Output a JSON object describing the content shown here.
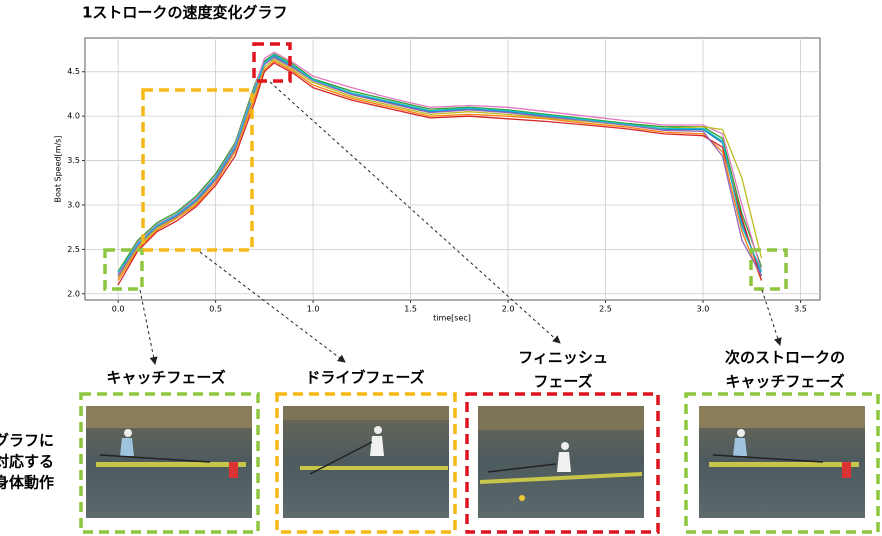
{
  "chart_data": {
    "type": "line",
    "title": "1ストロークの速度変化グラフ",
    "xlabel": "time[sec]",
    "ylabel": "Boat Speed[m/s]",
    "x": [
      0,
      0.1,
      0.2,
      0.3,
      0.4,
      0.5,
      0.6,
      0.7,
      0.75,
      0.8,
      0.9,
      1.0,
      1.2,
      1.4,
      1.6,
      1.8,
      2.0,
      2.2,
      2.4,
      2.6,
      2.8,
      3.0,
      3.1,
      3.2,
      3.3
    ],
    "series": [
      {
        "color": "#1f77b4",
        "values": [
          2.2,
          2.55,
          2.75,
          2.88,
          3.05,
          3.3,
          3.65,
          4.3,
          4.6,
          4.68,
          4.55,
          4.4,
          4.25,
          4.15,
          4.05,
          4.08,
          4.05,
          4.0,
          3.95,
          3.9,
          3.85,
          3.85,
          3.7,
          2.8,
          2.2
        ]
      },
      {
        "color": "#ff7f0e",
        "values": [
          2.15,
          2.5,
          2.72,
          2.85,
          3.0,
          3.25,
          3.6,
          4.2,
          4.52,
          4.62,
          4.5,
          4.35,
          4.2,
          4.1,
          4.0,
          4.02,
          4.0,
          3.97,
          3.92,
          3.88,
          3.82,
          3.8,
          3.6,
          2.7,
          2.15
        ]
      },
      {
        "color": "#2ca02c",
        "values": [
          2.25,
          2.6,
          2.8,
          2.92,
          3.1,
          3.35,
          3.7,
          4.35,
          4.62,
          4.7,
          4.58,
          4.42,
          4.28,
          4.18,
          4.08,
          4.1,
          4.07,
          4.02,
          3.97,
          3.92,
          3.88,
          3.88,
          3.75,
          2.9,
          2.3
        ]
      },
      {
        "color": "#d62728",
        "values": [
          2.1,
          2.48,
          2.7,
          2.82,
          2.98,
          3.22,
          3.55,
          4.15,
          4.5,
          4.6,
          4.48,
          4.32,
          4.18,
          4.08,
          3.98,
          4.0,
          3.97,
          3.94,
          3.9,
          3.86,
          3.8,
          3.78,
          3.65,
          2.85,
          2.15
        ]
      },
      {
        "color": "#e377c2",
        "values": [
          2.22,
          2.58,
          2.78,
          2.9,
          3.08,
          3.32,
          3.68,
          4.32,
          4.65,
          4.72,
          4.6,
          4.45,
          4.32,
          4.2,
          4.1,
          4.12,
          4.1,
          4.05,
          4.0,
          3.95,
          3.9,
          3.9,
          3.8,
          3.0,
          2.25
        ]
      },
      {
        "color": "#bcbd22",
        "values": [
          2.18,
          2.52,
          2.74,
          2.86,
          3.02,
          3.28,
          3.62,
          4.25,
          4.55,
          4.64,
          4.52,
          4.38,
          4.22,
          4.12,
          4.02,
          4.05,
          4.02,
          3.98,
          3.94,
          3.9,
          3.86,
          3.88,
          3.85,
          3.3,
          2.4
        ]
      },
      {
        "color": "#9467bd",
        "values": [
          2.2,
          2.54,
          2.76,
          2.87,
          3.04,
          3.28,
          3.63,
          4.28,
          4.58,
          4.66,
          4.54,
          4.4,
          4.24,
          4.14,
          4.04,
          4.07,
          4.04,
          3.99,
          3.95,
          3.9,
          3.84,
          3.83,
          3.55,
          2.6,
          2.2
        ]
      },
      {
        "color": "#17becf",
        "values": [
          2.24,
          2.56,
          2.77,
          2.89,
          3.06,
          3.31,
          3.66,
          4.3,
          4.6,
          4.69,
          4.56,
          4.41,
          4.26,
          4.16,
          4.06,
          4.09,
          4.06,
          4.01,
          3.96,
          3.91,
          3.86,
          3.86,
          3.72,
          2.75,
          2.25
        ]
      }
    ],
    "xlim": [
      -0.17,
      3.6
    ],
    "ylim": [
      1.93,
      4.88
    ],
    "xticks": [
      {
        "value": 0,
        "label": "0.0"
      },
      0.5,
      {
        "value": 1,
        "label": "1.0"
      },
      1.5,
      {
        "value": 2,
        "label": "2.0"
      },
      2.5,
      {
        "value": 3,
        "label": "3.0"
      },
      3.5
    ],
    "yticks": [
      {
        "value": 2,
        "label": "2.0"
      },
      2.5,
      {
        "value": 3,
        "label": "3.0"
      },
      3.5,
      {
        "value": 4,
        "label": "4.0"
      },
      4.5
    ],
    "grid": true
  },
  "phases": [
    {
      "lines": [
        "キャッチフェーズ"
      ]
    },
    {
      "lines": [
        "ドライブフェーズ"
      ]
    },
    {
      "lines": [
        "フィニッシュ",
        "フェーズ"
      ]
    },
    {
      "lines": [
        "次のストロークの",
        "キャッチフェーズ"
      ]
    }
  ],
  "side_label": [
    "グラフに",
    "対応する",
    "身体動作"
  ]
}
